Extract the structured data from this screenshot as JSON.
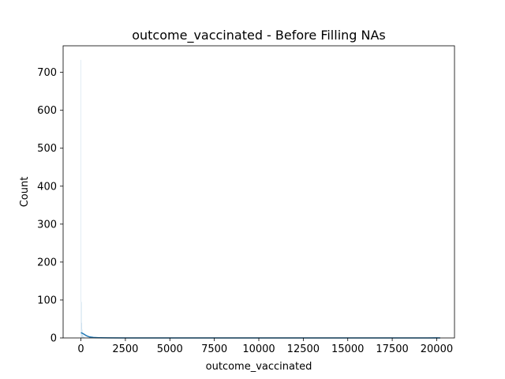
{
  "chart_data": {
    "type": "bar",
    "subtype": "histogram-with-kde",
    "title": "outcome_vaccinated - Before Filling NAs",
    "xlabel": "outcome_vaccinated",
    "ylabel": "Count",
    "xlim": [
      -1000,
      21000
    ],
    "ylim": [
      0,
      770
    ],
    "x_ticks": [
      0,
      2500,
      5000,
      7500,
      10000,
      12500,
      15000,
      17500,
      20000
    ],
    "x_tick_labels": [
      "0",
      "2500",
      "5000",
      "7500",
      "10000",
      "12500",
      "15000",
      "17500",
      "20000"
    ],
    "y_ticks": [
      0,
      100,
      200,
      300,
      400,
      500,
      600,
      700
    ],
    "y_tick_labels": [
      "0",
      "100",
      "200",
      "300",
      "400",
      "500",
      "600",
      "700"
    ],
    "grid": false,
    "series": [
      {
        "name": "histogram",
        "style": "bars",
        "color": "#1f77b4",
        "bins": [
          {
            "x0": 0,
            "x1": 20,
            "count": 733
          },
          {
            "x0": 20,
            "x1": 40,
            "count": 95
          },
          {
            "x0": 40,
            "x1": 60,
            "count": 40
          },
          {
            "x0": 60,
            "x1": 80,
            "count": 22
          },
          {
            "x0": 80,
            "x1": 100,
            "count": 14
          },
          {
            "x0": 100,
            "x1": 120,
            "count": 9
          },
          {
            "x0": 120,
            "x1": 140,
            "count": 6
          },
          {
            "x0": 140,
            "x1": 160,
            "count": 4
          },
          {
            "x0": 160,
            "x1": 180,
            "count": 3
          },
          {
            "x0": 180,
            "x1": 200,
            "count": 2
          },
          {
            "x0": 200,
            "x1": 220,
            "count": 2
          },
          {
            "x0": 220,
            "x1": 240,
            "count": 1
          },
          {
            "x0": 240,
            "x1": 260,
            "count": 1
          },
          {
            "x0": 20000,
            "x1": 20020,
            "count": 1
          }
        ]
      },
      {
        "name": "kde",
        "style": "line",
        "color": "#1f77b4",
        "x": [
          0,
          100,
          200,
          300,
          400,
          500,
          700,
          1000,
          1500,
          2500,
          5000,
          10000,
          15000,
          19500,
          20000,
          20200
        ],
        "y": [
          14,
          12,
          9,
          6,
          4,
          2.5,
          1.2,
          0.5,
          0.2,
          0,
          0,
          0,
          0,
          0,
          0.3,
          0
        ]
      }
    ]
  }
}
